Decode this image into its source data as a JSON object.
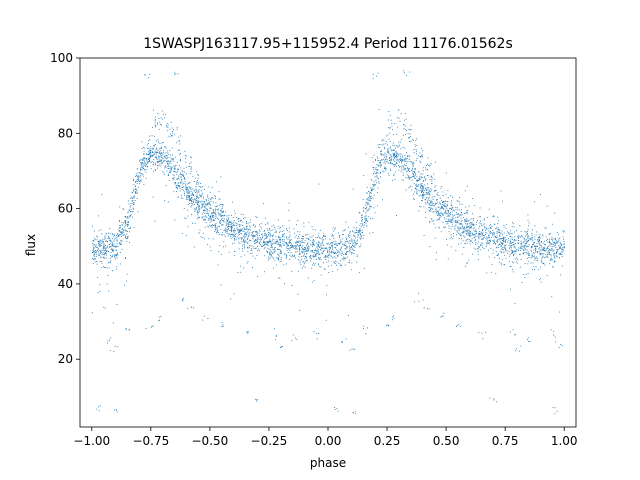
{
  "chart_data": {
    "type": "scatter",
    "title": "1SWASPJ163117.95+115952.4 Period 11176.01562s",
    "xlabel": "phase",
    "ylabel": "flux",
    "xlim": [
      -1.05,
      1.05
    ],
    "ylim": [
      2,
      100
    ],
    "xticks": [
      -1.0,
      -0.75,
      -0.5,
      -0.25,
      0.0,
      0.25,
      0.5,
      0.75,
      1.0
    ],
    "xtick_labels": [
      "−1.00",
      "−0.75",
      "−0.50",
      "−0.25",
      "0.00",
      "0.25",
      "0.50",
      "0.75",
      "1.00"
    ],
    "yticks": [
      20,
      40,
      60,
      80,
      100
    ],
    "ytick_labels": [
      "20",
      "40",
      "60",
      "80",
      "100"
    ],
    "marker_color": "#1f77b4",
    "grid": false,
    "light_curve": {
      "description_of_shape": "periodic, repeats with period 1 in phase",
      "phase": [
        0.0,
        0.05,
        0.1,
        0.15,
        0.2,
        0.25,
        0.3,
        0.35,
        0.4,
        0.45,
        0.5,
        0.55,
        0.6,
        0.65,
        0.7,
        0.75,
        0.8,
        0.85,
        0.9,
        0.95,
        1.0
      ],
      "flux": [
        49.5,
        49.5,
        50,
        56,
        70,
        75,
        74,
        70,
        65,
        61,
        58,
        56,
        54,
        53,
        52,
        51,
        50.5,
        50,
        49.5,
        49.5,
        49.5
      ]
    },
    "secondary_branch": {
      "phase": [
        0.25,
        0.3,
        0.35,
        0.4,
        0.45,
        0.5,
        0.55,
        0.6
      ],
      "flux": [
        82,
        85,
        80,
        72,
        66,
        62,
        60,
        58
      ]
    },
    "outliers": [
      {
        "x": -0.93,
        "y": 25
      },
      {
        "x": -0.9,
        "y": 23
      },
      {
        "x": -0.85,
        "y": 28
      },
      {
        "x": -0.75,
        "y": 29
      },
      {
        "x": -0.72,
        "y": 31
      },
      {
        "x": -0.62,
        "y": 36
      },
      {
        "x": -0.58,
        "y": 34
      },
      {
        "x": -0.52,
        "y": 31
      },
      {
        "x": -0.45,
        "y": 29
      },
      {
        "x": -0.35,
        "y": 27
      },
      {
        "x": -0.22,
        "y": 27
      },
      {
        "x": -0.2,
        "y": 23
      },
      {
        "x": -0.15,
        "y": 25
      },
      {
        "x": -0.05,
        "y": 27
      },
      {
        "x": 0.07,
        "y": 25
      },
      {
        "x": 0.1,
        "y": 23
      },
      {
        "x": 0.15,
        "y": 28
      },
      {
        "x": 0.25,
        "y": 29
      },
      {
        "x": 0.28,
        "y": 31
      },
      {
        "x": 0.38,
        "y": 36
      },
      {
        "x": 0.42,
        "y": 34
      },
      {
        "x": 0.48,
        "y": 31
      },
      {
        "x": 0.55,
        "y": 29
      },
      {
        "x": 0.65,
        "y": 27
      },
      {
        "x": 0.78,
        "y": 27
      },
      {
        "x": 0.8,
        "y": 23
      },
      {
        "x": 0.85,
        "y": 25
      },
      {
        "x": 0.95,
        "y": 27
      },
      {
        "x": 0.98,
        "y": 24
      },
      {
        "x": -0.97,
        "y": 7
      },
      {
        "x": -0.9,
        "y": 6.5
      },
      {
        "x": -0.3,
        "y": 9
      },
      {
        "x": 0.03,
        "y": 7
      },
      {
        "x": 0.1,
        "y": 6
      },
      {
        "x": 0.7,
        "y": 9
      },
      {
        "x": 0.95,
        "y": 7
      },
      {
        "x": -0.77,
        "y": 95
      },
      {
        "x": -0.65,
        "y": 96
      },
      {
        "x": 0.2,
        "y": 95
      },
      {
        "x": 0.33,
        "y": 96
      }
    ]
  }
}
